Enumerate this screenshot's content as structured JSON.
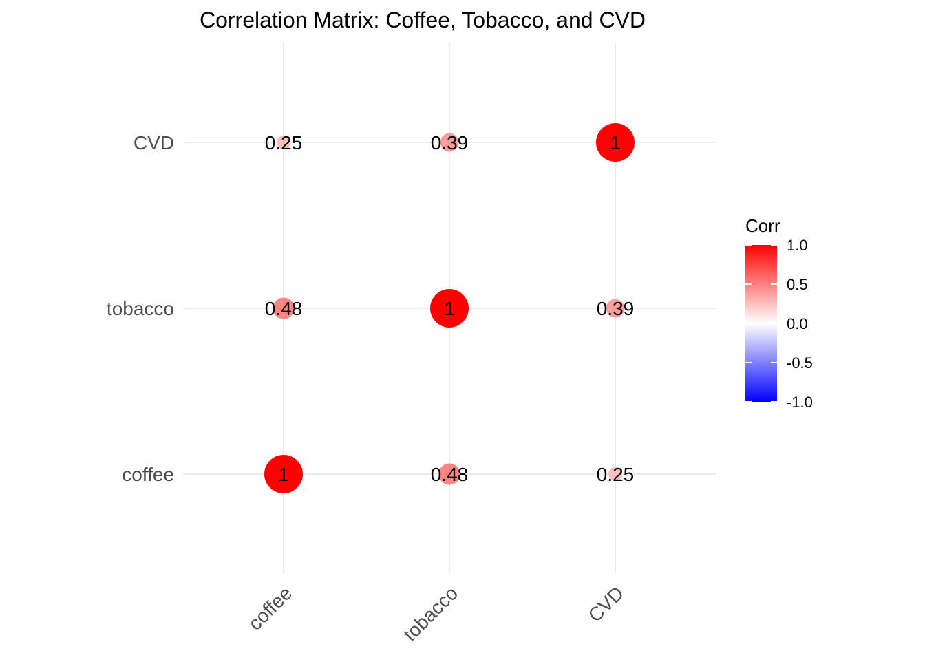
{
  "chart_data": {
    "type": "heatmap",
    "title": "Correlation Matrix: Coffee, Tobacco, and CVD",
    "x_categories": [
      "coffee",
      "tobacco",
      "CVD"
    ],
    "y_categories": [
      "coffee",
      "tobacco",
      "CVD"
    ],
    "matrix": [
      [
        1,
        0.48,
        0.25
      ],
      [
        0.48,
        1,
        0.39
      ],
      [
        0.25,
        0.39,
        1
      ]
    ],
    "cell_labels": [
      [
        "1",
        "0.48",
        "0.25"
      ],
      [
        "0.48",
        "1",
        "0.39"
      ],
      [
        "0.25",
        "0.39",
        "1"
      ]
    ],
    "marker": "circle sized and colored by correlation",
    "color_scale": {
      "low": "#0000ff",
      "mid": "#ffffff",
      "high": "#ff0000",
      "limits": [
        -1,
        1
      ]
    },
    "legend": {
      "title": "Corr",
      "ticks": [
        "1.0",
        "0.5",
        "0.0",
        "-0.5",
        "-1.0"
      ],
      "tick_values": [
        1,
        0.5,
        0,
        -0.5,
        -1
      ],
      "placement": "right"
    },
    "grid": true,
    "xlabel": "",
    "ylabel": ""
  }
}
